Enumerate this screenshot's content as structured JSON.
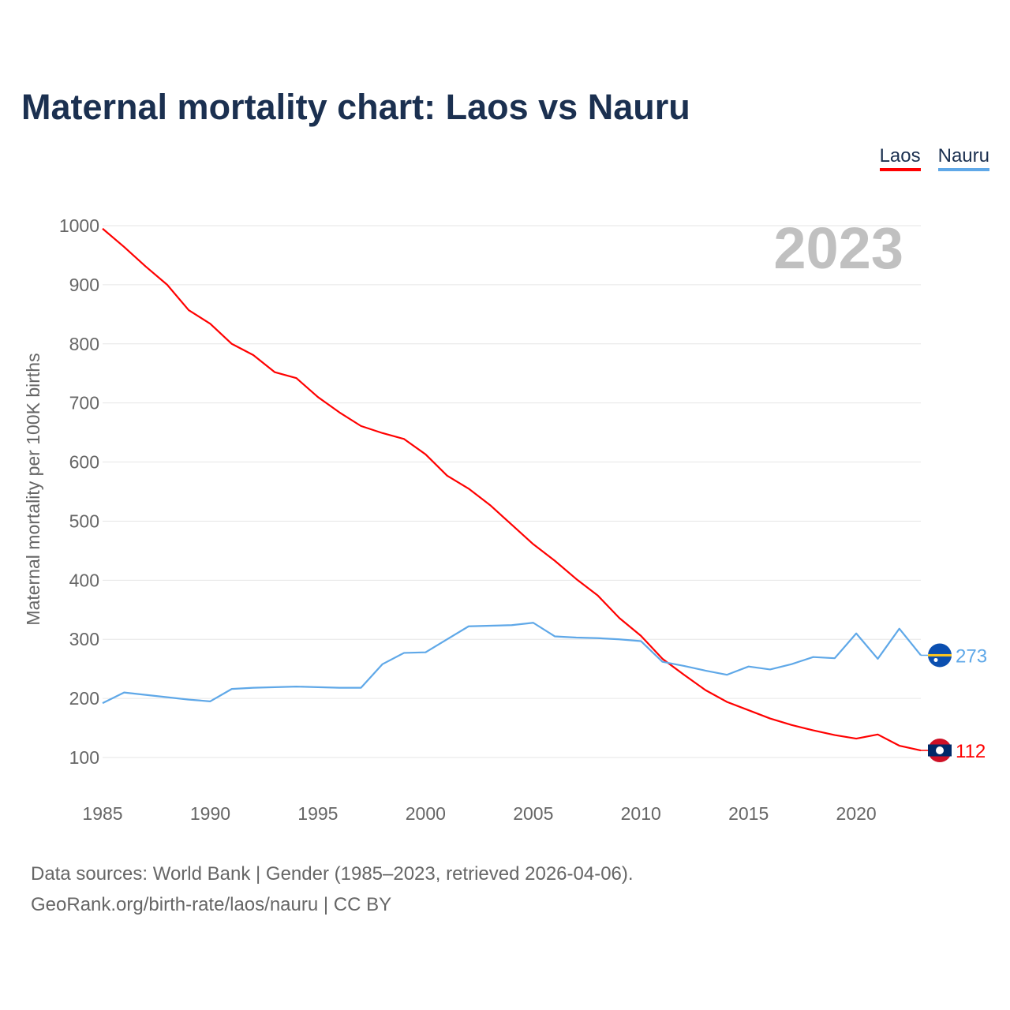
{
  "chart_data": {
    "type": "line",
    "title": "Maternal mortality chart: Laos vs Nauru",
    "ylabel": "Maternal mortality per 100K births",
    "xlabel": "",
    "year_label": "2023",
    "ylim": [
      0,
      1000
    ],
    "xlim": [
      1985,
      2023
    ],
    "yticks": [
      100,
      200,
      300,
      400,
      500,
      600,
      700,
      800,
      900,
      1000
    ],
    "xticks": [
      1985,
      1990,
      1995,
      2000,
      2005,
      2010,
      2015,
      2020
    ],
    "x": [
      1985,
      1986,
      1987,
      1988,
      1989,
      1990,
      1991,
      1992,
      1993,
      1994,
      1995,
      1996,
      1997,
      1998,
      1999,
      2000,
      2001,
      2002,
      2003,
      2004,
      2005,
      2006,
      2007,
      2008,
      2009,
      2010,
      2011,
      2012,
      2013,
      2014,
      2015,
      2016,
      2017,
      2018,
      2019,
      2020,
      2021,
      2022,
      2023
    ],
    "series": [
      {
        "name": "Laos",
        "color": "#ff0000",
        "end_label": "112",
        "values": [
          995,
          964,
          931,
          900,
          857,
          834,
          800,
          781,
          752,
          742,
          710,
          684,
          661,
          649,
          639,
          613,
          577,
          555,
          527,
          494,
          461,
          433,
          402,
          374,
          336,
          306,
          267,
          240,
          214,
          194,
          180,
          166,
          155,
          146,
          138,
          132,
          139,
          120,
          112
        ]
      },
      {
        "name": "Nauru",
        "color": "#5fa8e8",
        "end_label": "273",
        "values": [
          192,
          210,
          206,
          202,
          198,
          195,
          216,
          218,
          219,
          220,
          219,
          218,
          218,
          258,
          277,
          278,
          300,
          322,
          323,
          324,
          328,
          305,
          303,
          302,
          300,
          297,
          262,
          255,
          247,
          240,
          254,
          249,
          258,
          270,
          268,
          310,
          267,
          318,
          273
        ]
      }
    ],
    "legend": [
      "Laos",
      "Nauru"
    ],
    "legend_position": "top-right",
    "grid": true
  },
  "footer": {
    "line1": "Data sources: World Bank | Gender (1985–2023, retrieved 2026-04-06).",
    "line2": "GeoRank.org/birth-rate/laos/nauru | CC BY"
  }
}
